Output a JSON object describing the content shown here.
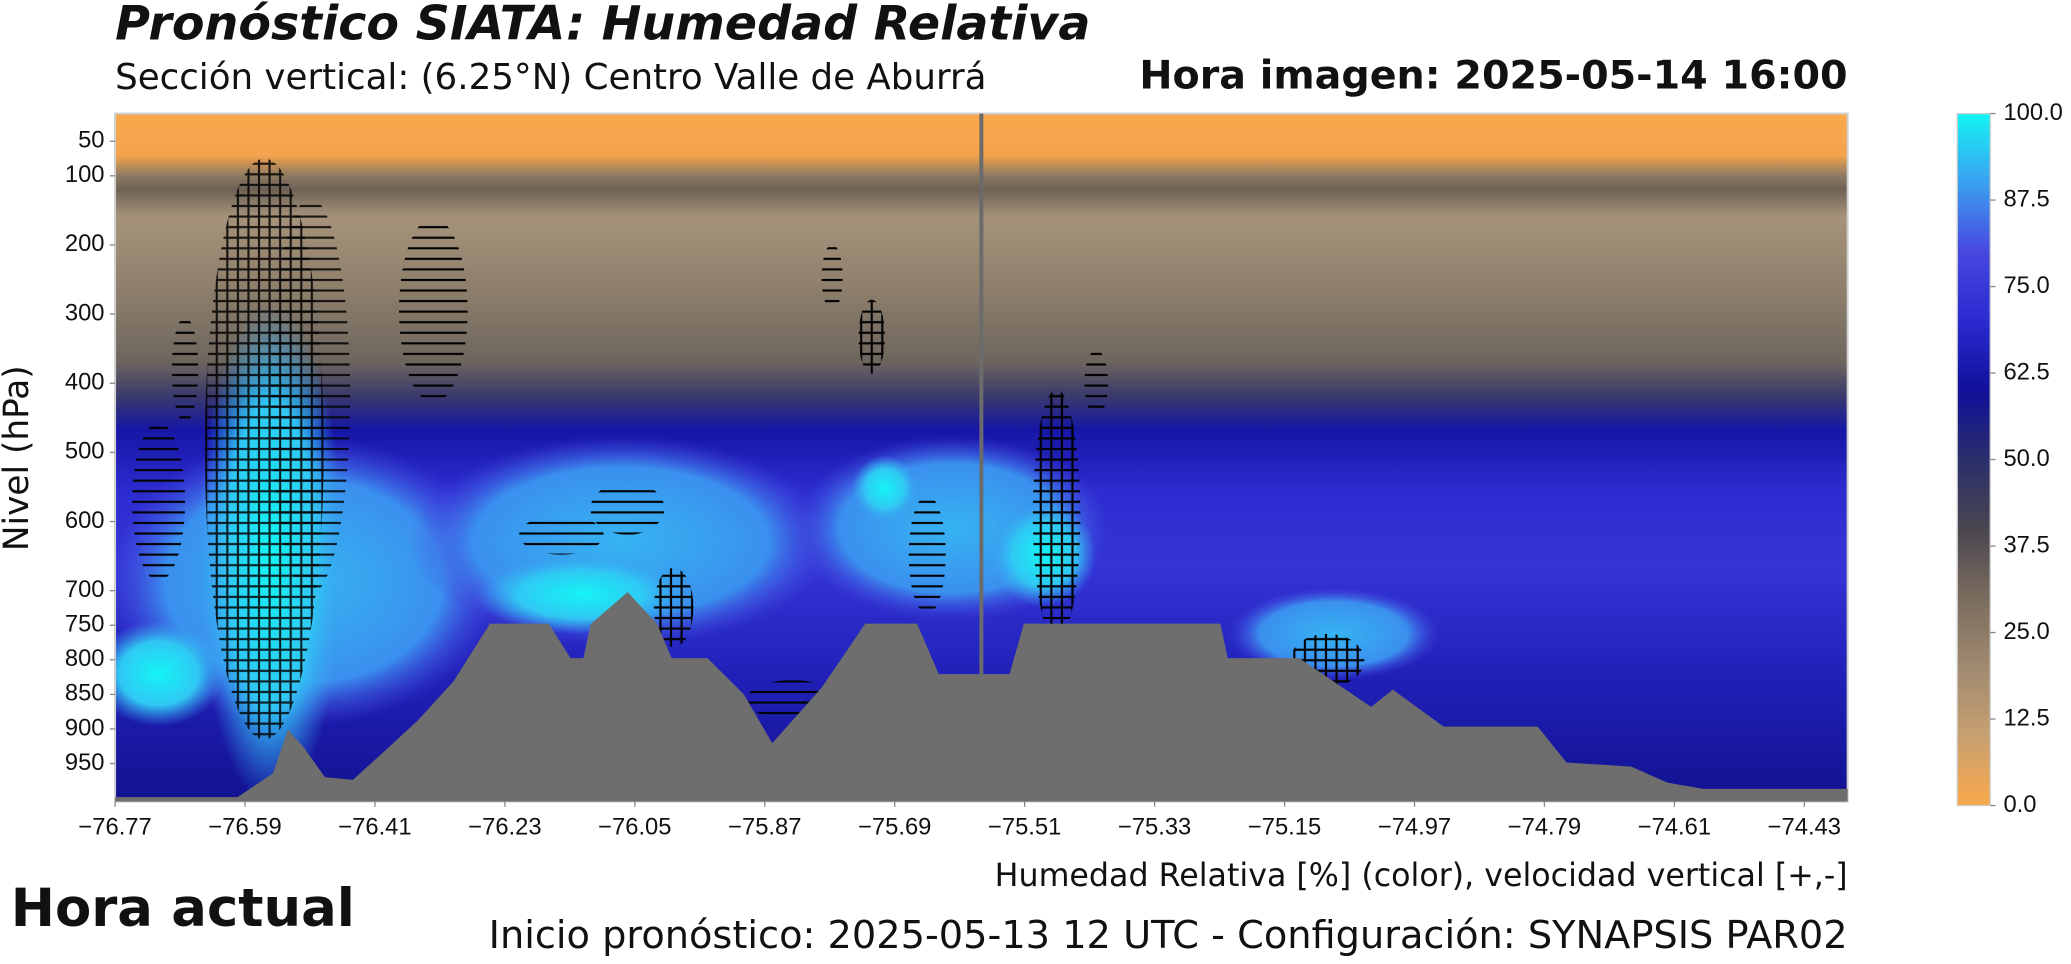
{
  "chart_data": {
    "type": "contour",
    "title": "Pronóstico SIATA: Humedad Relativa",
    "subtitle": "Sección vertical: (6.25°N) Centro Valle de Aburrá",
    "image_time": "Hora imagen: 2025-05-14 16:00",
    "ylabel": "Nivel (hPa)",
    "xlabel": "Humedad Relativa [%] (color), velocidad vertical [+,-]",
    "footer": "Inicio pronóstico: 2025-05-13 12 UTC - Configuración: SYNAPSIS PAR02",
    "current_label": "Hora actual",
    "xlim": [
      -76.77,
      -74.37
    ],
    "xticks": [
      {
        "value": -76.77,
        "label": "−76.77"
      },
      {
        "value": -76.59,
        "label": "−76.59"
      },
      {
        "value": -76.41,
        "label": "−76.41"
      },
      {
        "value": -76.23,
        "label": "−76.23"
      },
      {
        "value": -76.05,
        "label": "−76.05"
      },
      {
        "value": -75.87,
        "label": "−75.87"
      },
      {
        "value": -75.69,
        "label": "−75.69"
      },
      {
        "value": -75.51,
        "label": "−75.51"
      },
      {
        "value": -75.33,
        "label": "−75.33"
      },
      {
        "value": -75.15,
        "label": "−75.15"
      },
      {
        "value": -74.97,
        "label": "−74.97"
      },
      {
        "value": -74.79,
        "label": "−74.79"
      },
      {
        "value": -74.61,
        "label": "−74.61"
      },
      {
        "value": -74.43,
        "label": "−74.43"
      }
    ],
    "ylim": [
      1005,
      10
    ],
    "yticks": [
      50,
      100,
      200,
      300,
      400,
      500,
      600,
      700,
      750,
      800,
      850,
      900,
      950
    ],
    "current_lon": -75.57,
    "current_color": "#6b6b6b",
    "terrain": {
      "color": "#6e6e6e",
      "x": [
        -76.77,
        -76.6,
        -76.55,
        -76.53,
        -76.51,
        -76.48,
        -76.44,
        -76.4,
        -76.35,
        -76.3,
        -76.25,
        -76.17,
        -76.14,
        -76.12,
        -76.11,
        -76.06,
        -76.02,
        -76.0,
        -75.95,
        -75.9,
        -75.86,
        -75.79,
        -75.73,
        -75.66,
        -75.63,
        -75.53,
        -75.51,
        -75.24,
        -75.23,
        -75.13,
        -75.03,
        -75.0,
        -74.93,
        -74.8,
        -74.76,
        -74.67,
        -74.62,
        -74.57,
        -74.37
      ],
      "values": [
        1000,
        1000,
        965,
        904,
        927,
        971,
        975,
        937,
        889,
        832,
        749,
        749,
        799,
        799,
        749,
        704,
        749,
        799,
        799,
        851,
        923,
        841,
        749,
        749,
        822,
        822,
        749,
        749,
        799,
        799,
        870,
        845,
        898,
        898,
        950,
        956,
        979,
        988,
        988
      ]
    },
    "colorbar": {
      "lim": [
        0,
        100
      ],
      "ticks": [
        {
          "value": 0,
          "label": "0.0"
        },
        12.5,
        {
          "value": 25,
          "label": "25.0"
        },
        37.5,
        {
          "value": 50,
          "label": "50.0"
        },
        62.5,
        {
          "value": 75,
          "label": "75.0"
        },
        87.5,
        {
          "value": 100,
          "label": "100.0"
        }
      ],
      "colors": [
        "#f9a94b",
        "#c8a070",
        "#a08a70",
        "#7a6c5e",
        "#4a4650",
        "#2a2e6a",
        "#10109a",
        "#2a2ad0",
        "#4848e0",
        "#3aa0f0",
        "#14f4f4"
      ]
    }
  }
}
